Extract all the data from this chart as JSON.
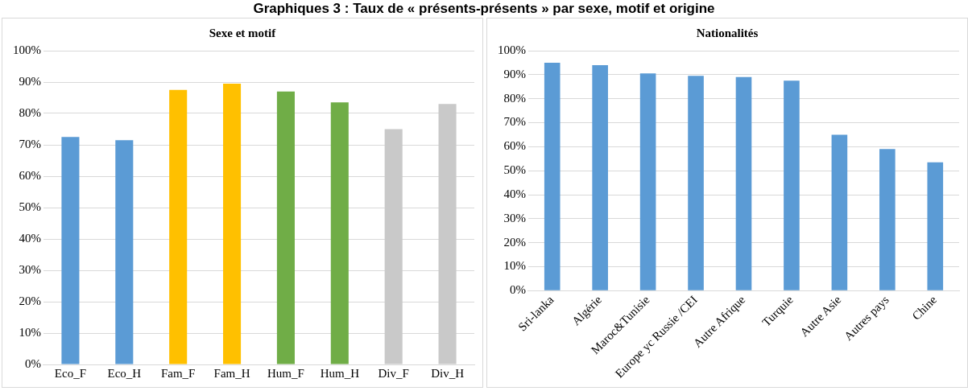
{
  "chart_data": [
    {
      "type": "bar",
      "title": "Sexe et motif",
      "annotations": [
        "Graphiques 3 : Taux de « présents-présents » par sexe, motif et origine"
      ],
      "categories": [
        "Eco_F",
        "Eco_H",
        "Fam_F",
        "Fam_H",
        "Hum_F",
        "Hum_H",
        "Div_F",
        "Div_H"
      ],
      "values": [
        72.5,
        71.5,
        87.5,
        89.5,
        87,
        83.5,
        75,
        83
      ],
      "colors": [
        "#5b9bd5",
        "#5b9bd5",
        "#ffc000",
        "#ffc000",
        "#70ad47",
        "#70ad47",
        "#c9c9c9",
        "#c9c9c9"
      ],
      "ylim": [
        0,
        100
      ],
      "yticks": [
        {
          "value": 0,
          "label": "0%"
        },
        {
          "value": 10,
          "label": "10%"
        },
        {
          "value": 20,
          "label": "20%"
        },
        {
          "value": 30,
          "label": "30%"
        },
        {
          "value": 40,
          "label": "40%"
        },
        {
          "value": 50,
          "label": "50%"
        },
        {
          "value": 60,
          "label": "60%"
        },
        {
          "value": 70,
          "label": "70%"
        },
        {
          "value": 80,
          "label": "80%"
        },
        {
          "value": 90,
          "label": "90%"
        },
        {
          "value": 100,
          "label": "100%"
        }
      ],
      "grid": "y",
      "legend": false
    },
    {
      "type": "bar",
      "title": "Nationalités",
      "categories": [
        "Sri-lanka",
        "Algérie",
        "Maroc&Tunisie",
        "Europe yc Russie /CEI",
        "Autre Afrique",
        "Turquie",
        "Autre Asie",
        "Autres pays",
        "Chine"
      ],
      "values": [
        95,
        94,
        90.5,
        89.5,
        89,
        87.5,
        65,
        59,
        53.5
      ],
      "color": "#5b9bd5",
      "ylim": [
        0,
        100
      ],
      "yticks": [
        {
          "value": 0,
          "label": "0%"
        },
        {
          "value": 10,
          "label": "10%"
        },
        {
          "value": 20,
          "label": "20%"
        },
        {
          "value": 30,
          "label": "30%"
        },
        {
          "value": 40,
          "label": "40%"
        },
        {
          "value": 50,
          "label": "50%"
        },
        {
          "value": 60,
          "label": "60%"
        },
        {
          "value": 70,
          "label": "70%"
        },
        {
          "value": 80,
          "label": "80%"
        },
        {
          "value": 90,
          "label": "90%"
        },
        {
          "value": 100,
          "label": "100%"
        }
      ],
      "grid": "y",
      "legend": false
    }
  ]
}
